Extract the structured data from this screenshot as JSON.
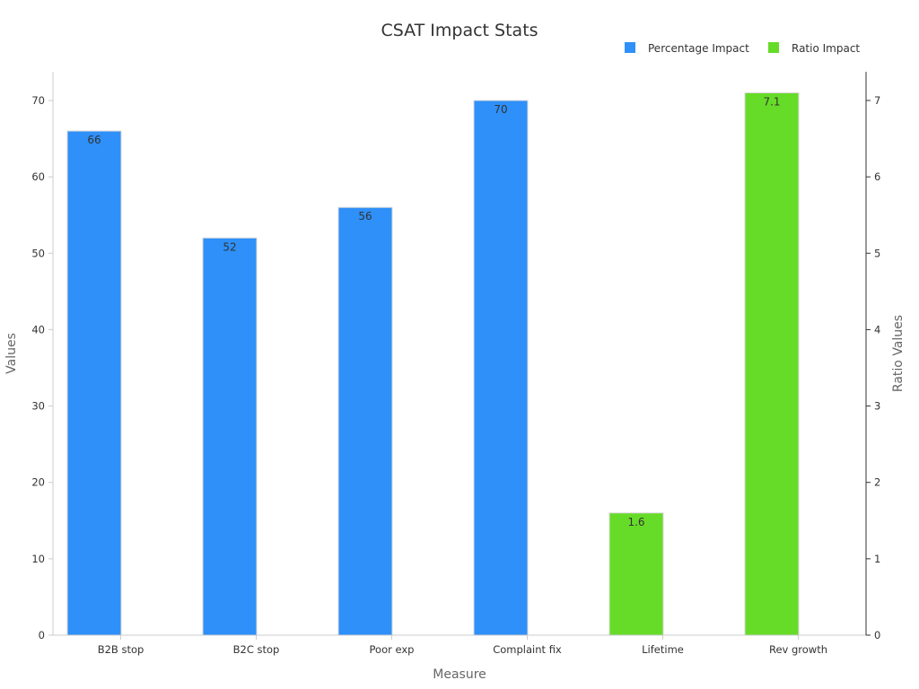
{
  "chart_data": {
    "type": "bar",
    "title": "CSAT Impact Stats",
    "xlabel": "Measure",
    "ylabel": "Values",
    "y2label": "Ratio Values",
    "categories": [
      "B2B stop",
      "B2C stop",
      "Poor exp",
      "Complaint fix",
      "Lifetime",
      "Rev growth"
    ],
    "series": [
      {
        "name": "Percentage Impact",
        "axis": "left",
        "color": "#2E90F8",
        "values": [
          66,
          52,
          56,
          70,
          null,
          null
        ],
        "labels": [
          "66",
          "52",
          "56",
          "70",
          "",
          ""
        ]
      },
      {
        "name": "Ratio Impact",
        "axis": "right",
        "color": "#66DC28",
        "values": [
          null,
          null,
          null,
          null,
          1.6,
          7.1
        ],
        "labels": [
          "",
          "",
          "",
          "",
          "1.6",
          "7.1"
        ]
      }
    ],
    "ylim": [
      0,
      70
    ],
    "y2lim": [
      0,
      7.1
    ],
    "yticks": [
      "0",
      "10",
      "20",
      "30",
      "40",
      "50",
      "60",
      "70"
    ],
    "y2ticks": [
      "0",
      "1",
      "2",
      "3",
      "4",
      "5",
      "6",
      "7"
    ],
    "legend_position": "top-right",
    "grid": false
  }
}
